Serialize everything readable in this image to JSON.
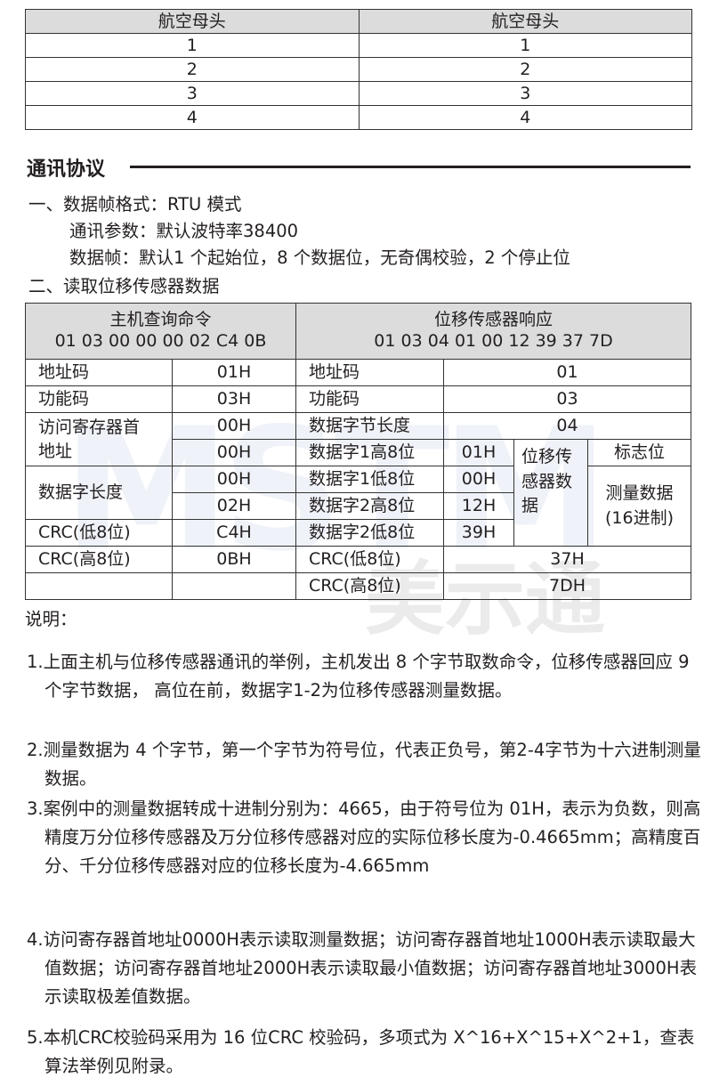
{
  "connector_table": {
    "headers": [
      "航空母头",
      "航空母头"
    ],
    "rows": [
      [
        "1",
        "1"
      ],
      [
        "2",
        "2"
      ],
      [
        "3",
        "3"
      ],
      [
        "4",
        "4"
      ]
    ]
  },
  "section_title": "通讯协议",
  "lines": [
    "一、数据帧格式：RTU 模式",
    "通讯参数：默认波特率38400",
    "数据帧：默认1 个起始位，8 个数据位，无奇偶校验，2 个停止位",
    "二、读取位移传感器数据"
  ],
  "protocol_table": {
    "host_header": "主机查询命令",
    "host_bytes": "01 03 00 00 00 02 C4 0B",
    "sensor_header": "位移传感器响应",
    "sensor_bytes": "01 03 04 01 00 12 39 37 7D",
    "host": [
      [
        "地址码",
        "01H"
      ],
      [
        "功能码",
        "03H"
      ],
      [
        "访问寄存器首地址",
        "00H",
        "00H"
      ],
      [
        "数据字长度",
        "00H",
        "02H"
      ],
      [
        "CRC(低8位)",
        "C4H"
      ],
      [
        "CRC(高8位)",
        "0BH"
      ]
    ],
    "sensor": [
      [
        "地址码",
        "01"
      ],
      [
        "功能码",
        "03"
      ],
      [
        "数据字节长度",
        "04"
      ],
      [
        "数据字1高8位",
        "01H"
      ],
      [
        "数据字1低8位",
        "00H"
      ],
      [
        "数据字2高8位",
        "12H"
      ],
      [
        "数据字2低8位",
        "39H"
      ],
      [
        "CRC(低8位)",
        "37H"
      ],
      [
        "CRC(高8位)",
        "7DH"
      ]
    ],
    "group_label": "位移传感器数据",
    "flag_label": "标志位",
    "measure_label": "测量数据(16进制)"
  },
  "notes_title": "说明：",
  "notes": [
    "1.上面主机与位移传感器通讯的举例，主机发出 8 个字节取数命令，位移传感器回应 9 个字节数据， 高位在前，数据字1-2为位移传感器测量数据。",
    "2.测量数据为 4 个字节，第一个字节为符号位，代表正负号，第2-4字节为十六进制测量数据。",
    "3.案例中的测量数据转成十进制分别为：4665，由于符号位为 01H，表示为负数，则高精度万分位移传感器及万分位移传感器对应的实际位移长度为-0.4665mm；高精度百分、千分位移传感器对应的位移长度为-4.665mm",
    "4.访问寄存器首地址0000H表示读取测量数据；访问寄存器首地址1000H表示读取最大值数据；访问寄存器首地址2000H表示读取最小值数据；访问寄存器首地址3000H表示读取极差值数据。",
    "5.本机CRC校验码采用为 16 位CRC 校验码，多项式为 X^16+X^15+X^2+1，查表算法举例见附录。"
  ],
  "watermark": {
    "latin": "MSTM",
    "chinese": "美示通"
  }
}
